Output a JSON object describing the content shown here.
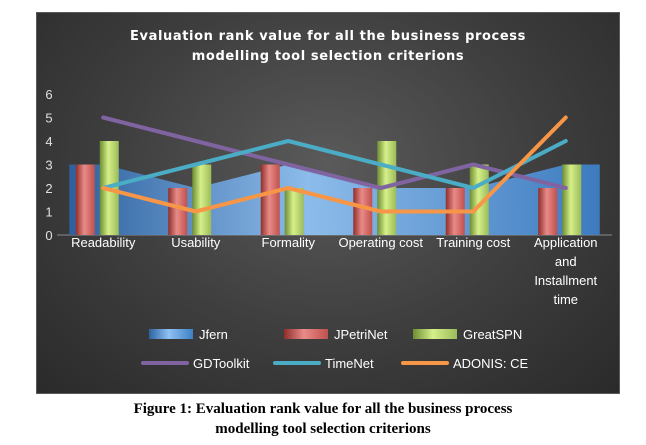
{
  "chart_data": {
    "type": "bar",
    "title_lines": [
      "Evaluation rank value for all the business process",
      "modelling tool selection criterions"
    ],
    "categories": [
      [
        "Readability"
      ],
      [
        "Usability"
      ],
      [
        "Formality"
      ],
      [
        "Operating cost"
      ],
      [
        "Training cost"
      ],
      [
        "Application",
        "and",
        "Installment",
        "time"
      ]
    ],
    "ylim": [
      0,
      6
    ],
    "yticks": [
      "0",
      "1",
      "2",
      "3",
      "4",
      "5",
      "6"
    ],
    "grid": false,
    "legend_position": "bottom",
    "series": [
      {
        "name": "Jfern",
        "kind": "area",
        "color": "#4a8fd4",
        "values": [
          3,
          2,
          3,
          2,
          2,
          3
        ]
      },
      {
        "name": "JPetriNet",
        "kind": "bar",
        "color": "#c0504d",
        "values": [
          3,
          2,
          3,
          2,
          2,
          2
        ]
      },
      {
        "name": "GreatSPN",
        "kind": "bar",
        "color": "#9bbb59",
        "values": [
          4,
          3,
          2,
          4,
          3,
          3
        ]
      },
      {
        "name": "GDToolkit",
        "kind": "line",
        "color": "#8064a2",
        "values": [
          5,
          4,
          3,
          2,
          3,
          2
        ]
      },
      {
        "name": "TimeNet",
        "kind": "line",
        "color": "#4bacc6",
        "values": [
          2,
          3,
          4,
          3,
          2,
          4
        ]
      },
      {
        "name": "ADONIS: CE",
        "kind": "line",
        "color": "#f79646",
        "values": [
          2,
          1,
          2,
          1,
          1,
          5
        ]
      }
    ]
  },
  "caption": {
    "line1": "Figure 1: Evaluation rank value for all the business process",
    "line2": "modelling tool selection criterions"
  }
}
